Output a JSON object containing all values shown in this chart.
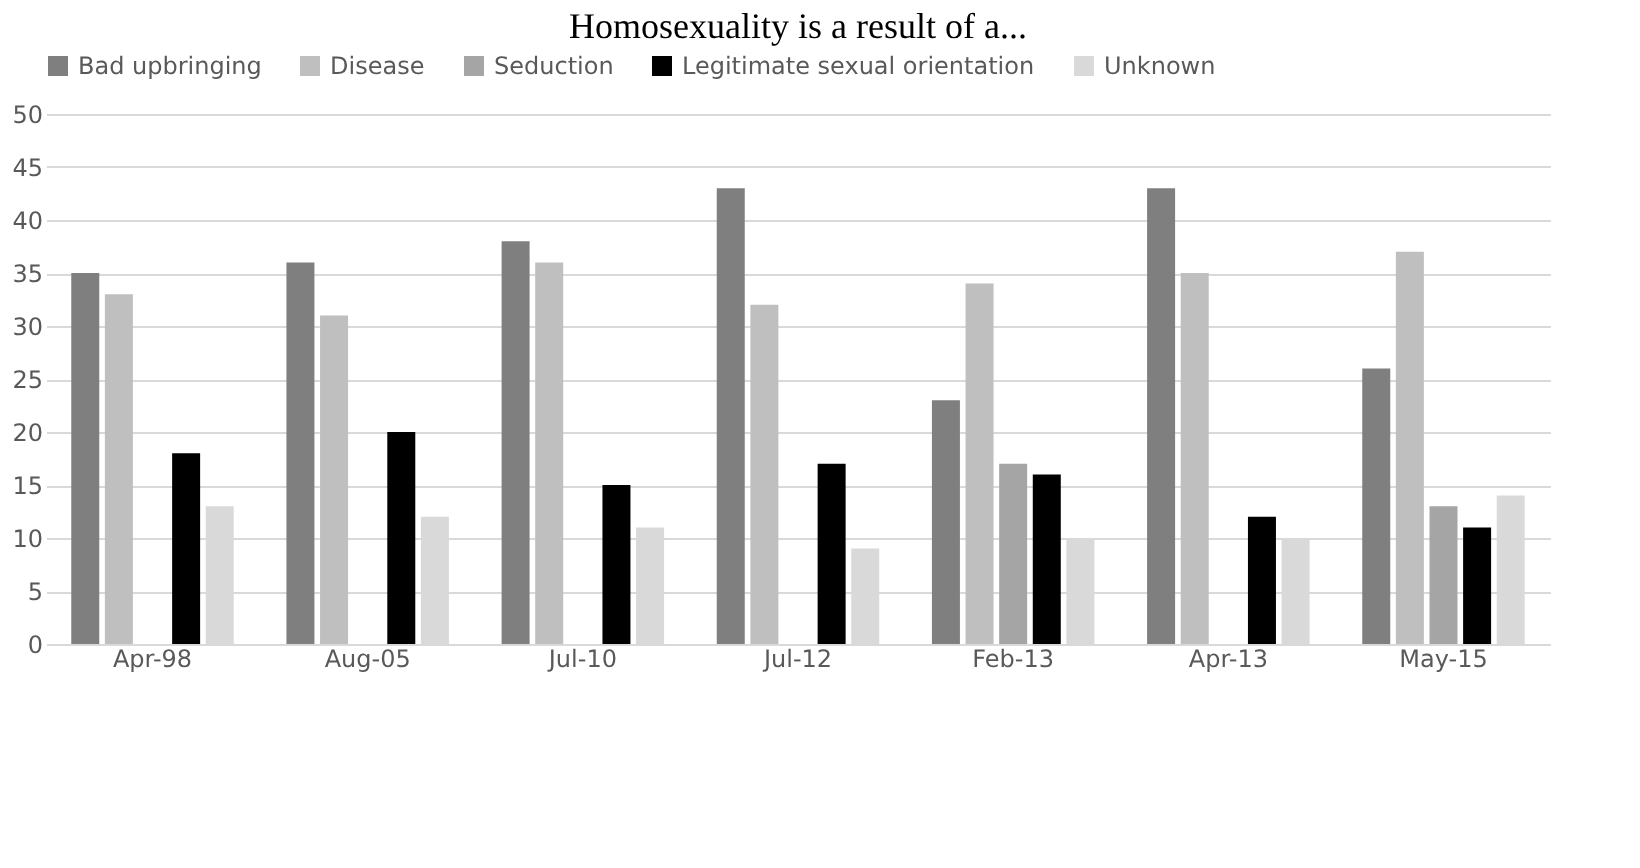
{
  "chart_data": {
    "type": "bar",
    "title": "Homosexuality is a result of a...",
    "categories": [
      "Apr-98",
      "Aug-05",
      "Jul-10",
      "Jul-12",
      "Feb-13",
      "Apr-13",
      "May-15"
    ],
    "series": [
      {
        "name": "Bad upbringing",
        "color": "#7f7f7f",
        "values": [
          35,
          36,
          38,
          43,
          23,
          43,
          26
        ]
      },
      {
        "name": "Disease",
        "color": "#bfbfbf",
        "values": [
          33,
          31,
          36,
          32,
          34,
          35,
          37
        ]
      },
      {
        "name": "Seduction",
        "color": "#a5a5a5",
        "values": [
          null,
          null,
          null,
          null,
          17,
          null,
          13
        ]
      },
      {
        "name": "Legitimate sexual orientation",
        "color": "#000000",
        "values": [
          18,
          20,
          15,
          17,
          16,
          12,
          11
        ]
      },
      {
        "name": "Unknown",
        "color": "#d9d9d9",
        "values": [
          13,
          12,
          11,
          9,
          10,
          10,
          14
        ]
      }
    ],
    "ylim": [
      0,
      50
    ],
    "yticks": [
      0,
      5,
      10,
      15,
      20,
      25,
      30,
      35,
      40,
      45,
      50
    ],
    "grid": "y",
    "legend": "top"
  }
}
